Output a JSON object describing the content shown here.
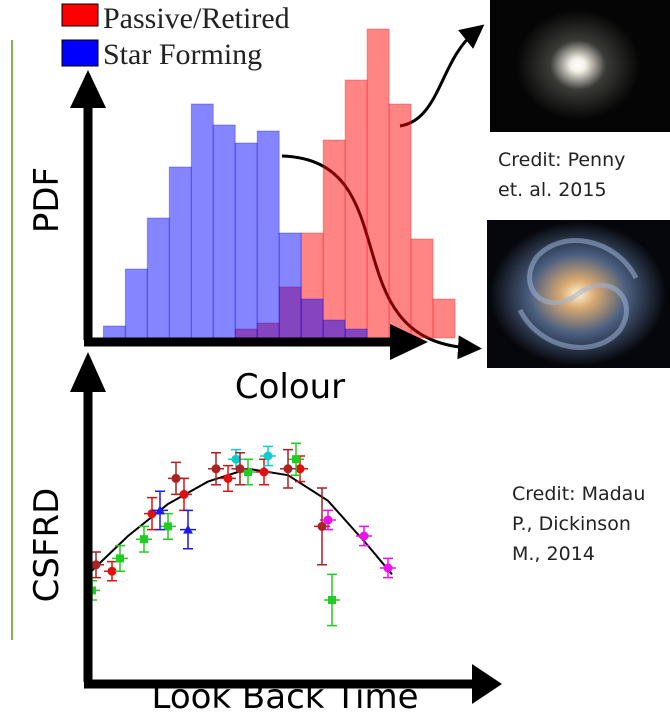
{
  "chart_data": [
    {
      "type": "histogram",
      "ylabel": "PDF",
      "xlabel": "Colour",
      "bins": [
        0,
        1,
        2,
        3,
        4,
        5,
        6,
        7,
        8,
        9,
        10,
        11,
        12,
        13,
        14,
        15,
        16
      ],
      "xlim": [
        -0.7,
        16.5
      ],
      "ylim": [
        0,
        110
      ],
      "series": [
        {
          "name": "Passive/Retired",
          "color": "#ff0000",
          "values": [
            0,
            0,
            0,
            0,
            0,
            0,
            3,
            5,
            17,
            35,
            66,
            86,
            103,
            78,
            33,
            13
          ]
        },
        {
          "name": "Star Forming",
          "color": "#0000ff",
          "values": [
            4,
            23,
            40,
            57,
            78,
            71,
            65,
            69,
            35,
            13,
            6,
            3,
            0,
            0,
            0,
            0
          ]
        }
      ]
    },
    {
      "type": "scatter",
      "ylabel": "CSFRD",
      "xlabel": "Look Back Time",
      "xlim": [
        0,
        100
      ],
      "ylim": [
        0,
        100
      ],
      "series": [
        {
          "color": "#e01010",
          "marker": "circle",
          "x": [
            6,
            16,
            24,
            35,
            44,
            53
          ],
          "values": [
            34,
            52,
            58,
            63,
            65,
            66
          ],
          "errors": [
            3,
            5,
            5,
            4,
            4,
            4
          ]
        },
        {
          "color": "#22cc22",
          "marker": "square",
          "x": [
            1,
            8,
            14,
            20,
            40,
            52,
            61
          ],
          "values": [
            28,
            38,
            44,
            48,
            65,
            69,
            25
          ],
          "errors": [
            3,
            4,
            4,
            4,
            4,
            5,
            8
          ]
        },
        {
          "color": "#1a1aee",
          "marker": "triangle",
          "x": [
            18,
            25
          ],
          "values": [
            53,
            47
          ],
          "errors": [
            6,
            6
          ]
        },
        {
          "color": "#11cccc",
          "marker": "circle",
          "x": [
            37,
            45
          ],
          "values": [
            69,
            70
          ],
          "errors": [
            3,
            3
          ]
        },
        {
          "color": "#ee11ee",
          "marker": "circle",
          "x": [
            60,
            69,
            75
          ],
          "values": [
            50,
            45,
            35
          ],
          "errors": [
            3,
            3,
            3
          ]
        },
        {
          "color": "#aa2222",
          "marker": "circle",
          "x": [
            2,
            22,
            32,
            38,
            50,
            58.5
          ],
          "values": [
            36,
            63,
            66,
            66,
            66,
            48
          ],
          "errors": [
            4,
            5,
            5,
            5,
            6,
            12
          ]
        }
      ],
      "fit": {
        "color": "#000000",
        "x": [
          0,
          10,
          20,
          30,
          40,
          50,
          60,
          70,
          76
        ],
        "values": [
          33,
          45,
          55,
          62,
          66,
          64,
          56,
          42,
          33
        ]
      }
    }
  ],
  "image_credits": [
    {
      "lines": [
        "Credit: Penny",
        "et. al. 2015"
      ]
    },
    {
      "lines": [
        "Credit: Madau",
        "P., Dickinson",
        "M., 2014"
      ]
    }
  ]
}
